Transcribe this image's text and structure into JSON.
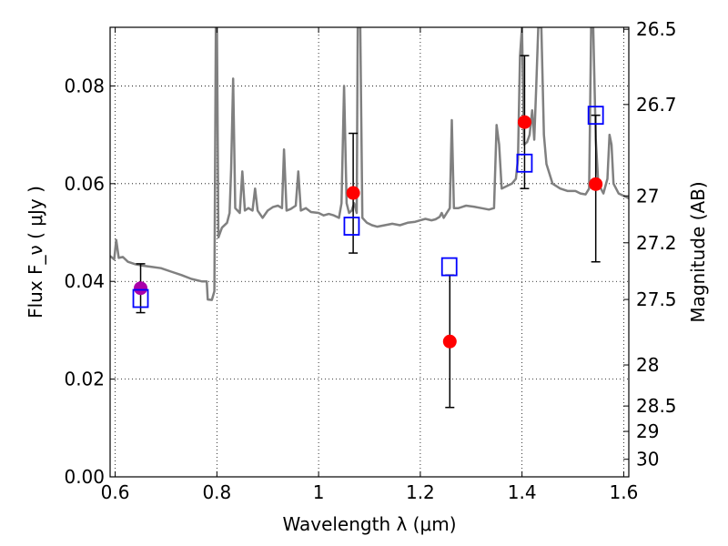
{
  "chart_data": {
    "type": "scatter",
    "xlabel": "Wavelength λ (μm)",
    "ylabel": "Flux F_ν ( μJy )",
    "y2label": "Magnitude (AB)",
    "xlim": [
      0.59,
      1.61
    ],
    "ylim": [
      0.0,
      0.092
    ],
    "grid": true,
    "x_ticks": [
      {
        "value": 0.6,
        "label": "0.6"
      },
      {
        "value": 0.8,
        "label": "0.8"
      },
      {
        "value": 1.0,
        "label": "1"
      },
      {
        "value": 1.2,
        "label": "1.2"
      },
      {
        "value": 1.4,
        "label": "1.4"
      },
      {
        "value": 1.6,
        "label": "1.6"
      }
    ],
    "y_ticks": [
      {
        "value": 0.0,
        "label": "0.00"
      },
      {
        "value": 0.02,
        "label": "0.02"
      },
      {
        "value": 0.04,
        "label": "0.04"
      },
      {
        "value": 0.06,
        "label": "0.06"
      },
      {
        "value": 0.08,
        "label": "0.08"
      }
    ],
    "y2_ticks": [
      {
        "flux": 0.0916,
        "label": "26.5"
      },
      {
        "flux": 0.0762,
        "label": "26.7"
      },
      {
        "flux": 0.0575,
        "label": "27"
      },
      {
        "flux": 0.0479,
        "label": "27.2"
      },
      {
        "flux": 0.0363,
        "label": "27.5"
      },
      {
        "flux": 0.0229,
        "label": "28"
      },
      {
        "flux": 0.0145,
        "label": "28.5"
      },
      {
        "flux": 0.0093,
        "label": "29"
      },
      {
        "flux": 0.0036,
        "label": "30"
      }
    ],
    "model_spectrum": {
      "color": "#808080",
      "points": [
        [
          0.59,
          0.0452
        ],
        [
          0.598,
          0.0445
        ],
        [
          0.602,
          0.0485
        ],
        [
          0.607,
          0.0448
        ],
        [
          0.615,
          0.045
        ],
        [
          0.625,
          0.044
        ],
        [
          0.64,
          0.0435
        ],
        [
          0.655,
          0.0432
        ],
        [
          0.67,
          0.043
        ],
        [
          0.69,
          0.0427
        ],
        [
          0.71,
          0.042
        ],
        [
          0.73,
          0.0413
        ],
        [
          0.75,
          0.0405
        ],
        [
          0.77,
          0.04
        ],
        [
          0.78,
          0.04
        ],
        [
          0.782,
          0.0363
        ],
        [
          0.79,
          0.0362
        ],
        [
          0.795,
          0.038
        ],
        [
          0.798,
          0.092
        ],
        [
          0.8,
          0.092
        ],
        [
          0.803,
          0.049
        ],
        [
          0.81,
          0.051
        ],
        [
          0.82,
          0.052
        ],
        [
          0.825,
          0.054
        ],
        [
          0.828,
          0.063
        ],
        [
          0.832,
          0.0815
        ],
        [
          0.836,
          0.055
        ],
        [
          0.845,
          0.054
        ],
        [
          0.85,
          0.0625
        ],
        [
          0.855,
          0.0545
        ],
        [
          0.862,
          0.055
        ],
        [
          0.87,
          0.0545
        ],
        [
          0.875,
          0.059
        ],
        [
          0.88,
          0.0545
        ],
        [
          0.89,
          0.053
        ],
        [
          0.9,
          0.0545
        ],
        [
          0.91,
          0.0552
        ],
        [
          0.92,
          0.0555
        ],
        [
          0.928,
          0.055
        ],
        [
          0.932,
          0.067
        ],
        [
          0.937,
          0.0545
        ],
        [
          0.945,
          0.0548
        ],
        [
          0.955,
          0.0555
        ],
        [
          0.96,
          0.0625
        ],
        [
          0.965,
          0.0545
        ],
        [
          0.975,
          0.055
        ],
        [
          0.985,
          0.0542
        ],
        [
          1.0,
          0.054
        ],
        [
          1.01,
          0.0535
        ],
        [
          1.02,
          0.0538
        ],
        [
          1.03,
          0.0535
        ],
        [
          1.04,
          0.053
        ],
        [
          1.045,
          0.056
        ],
        [
          1.05,
          0.08
        ],
        [
          1.055,
          0.056
        ],
        [
          1.06,
          0.054
        ],
        [
          1.065,
          0.0545
        ],
        [
          1.07,
          0.056
        ],
        [
          1.075,
          0.054
        ],
        [
          1.077,
          0.092
        ],
        [
          1.082,
          0.092
        ],
        [
          1.086,
          0.053
        ],
        [
          1.095,
          0.052
        ],
        [
          1.105,
          0.0515
        ],
        [
          1.115,
          0.0512
        ],
        [
          1.13,
          0.0515
        ],
        [
          1.145,
          0.0518
        ],
        [
          1.16,
          0.0515
        ],
        [
          1.175,
          0.052
        ],
        [
          1.19,
          0.0522
        ],
        [
          1.2,
          0.0525
        ],
        [
          1.21,
          0.0528
        ],
        [
          1.222,
          0.0525
        ],
        [
          1.23,
          0.0527
        ],
        [
          1.238,
          0.0532
        ],
        [
          1.242,
          0.054
        ],
        [
          1.246,
          0.053
        ],
        [
          1.252,
          0.054
        ],
        [
          1.258,
          0.055
        ],
        [
          1.262,
          0.073
        ],
        [
          1.266,
          0.055
        ],
        [
          1.275,
          0.055
        ],
        [
          1.29,
          0.0555
        ],
        [
          1.305,
          0.0553
        ],
        [
          1.32,
          0.055
        ],
        [
          1.335,
          0.0547
        ],
        [
          1.345,
          0.055
        ],
        [
          1.35,
          0.072
        ],
        [
          1.355,
          0.068
        ],
        [
          1.36,
          0.059
        ],
        [
          1.37,
          0.0595
        ],
        [
          1.38,
          0.06
        ],
        [
          1.388,
          0.061
        ],
        [
          1.392,
          0.065
        ],
        [
          1.396,
          0.086
        ],
        [
          1.4,
          0.092
        ],
        [
          1.404,
          0.068
        ],
        [
          1.41,
          0.0685
        ],
        [
          1.415,
          0.07
        ],
        [
          1.42,
          0.075
        ],
        [
          1.424,
          0.069
        ],
        [
          1.428,
          0.08
        ],
        [
          1.432,
          0.092
        ],
        [
          1.438,
          0.092
        ],
        [
          1.443,
          0.07
        ],
        [
          1.448,
          0.064
        ],
        [
          1.46,
          0.06
        ],
        [
          1.475,
          0.059
        ],
        [
          1.49,
          0.0585
        ],
        [
          1.505,
          0.0585
        ],
        [
          1.515,
          0.058
        ],
        [
          1.525,
          0.0578
        ],
        [
          1.532,
          0.059
        ],
        [
          1.536,
          0.092
        ],
        [
          1.54,
          0.092
        ],
        [
          1.545,
          0.069
        ],
        [
          1.55,
          0.06
        ],
        [
          1.56,
          0.058
        ],
        [
          1.568,
          0.061
        ],
        [
          1.572,
          0.07
        ],
        [
          1.576,
          0.068
        ],
        [
          1.58,
          0.06
        ],
        [
          1.59,
          0.058
        ],
        [
          1.6,
          0.0575
        ],
        [
          1.61,
          0.057
        ]
      ]
    },
    "observed": [
      {
        "x": 0.65,
        "y": 0.0386,
        "err_low": 0.0336,
        "err_high": 0.0436,
        "color": "#aa00aa"
      },
      {
        "x": 1.068,
        "y": 0.0581,
        "err_low": 0.0458,
        "err_high": 0.0703,
        "color": "#ff0000"
      },
      {
        "x": 1.258,
        "y": 0.0277,
        "err_low": 0.0142,
        "err_high": 0.0413,
        "color": "#ff0000"
      },
      {
        "x": 1.405,
        "y": 0.0726,
        "err_low": 0.059,
        "err_high": 0.0862,
        "color": "#ff0000"
      },
      {
        "x": 1.545,
        "y": 0.0599,
        "err_low": 0.044,
        "err_high": 0.074,
        "color": "#ff0000"
      }
    ],
    "model_photometry": [
      {
        "x": 0.65,
        "y": 0.0365,
        "color": "#0000ff"
      },
      {
        "x": 1.065,
        "y": 0.0513,
        "color": "#0000ff"
      },
      {
        "x": 1.257,
        "y": 0.043,
        "color": "#0000ff"
      },
      {
        "x": 1.405,
        "y": 0.0642,
        "color": "#0000ff"
      },
      {
        "x": 1.545,
        "y": 0.074,
        "color": "#0000ff"
      }
    ]
  }
}
